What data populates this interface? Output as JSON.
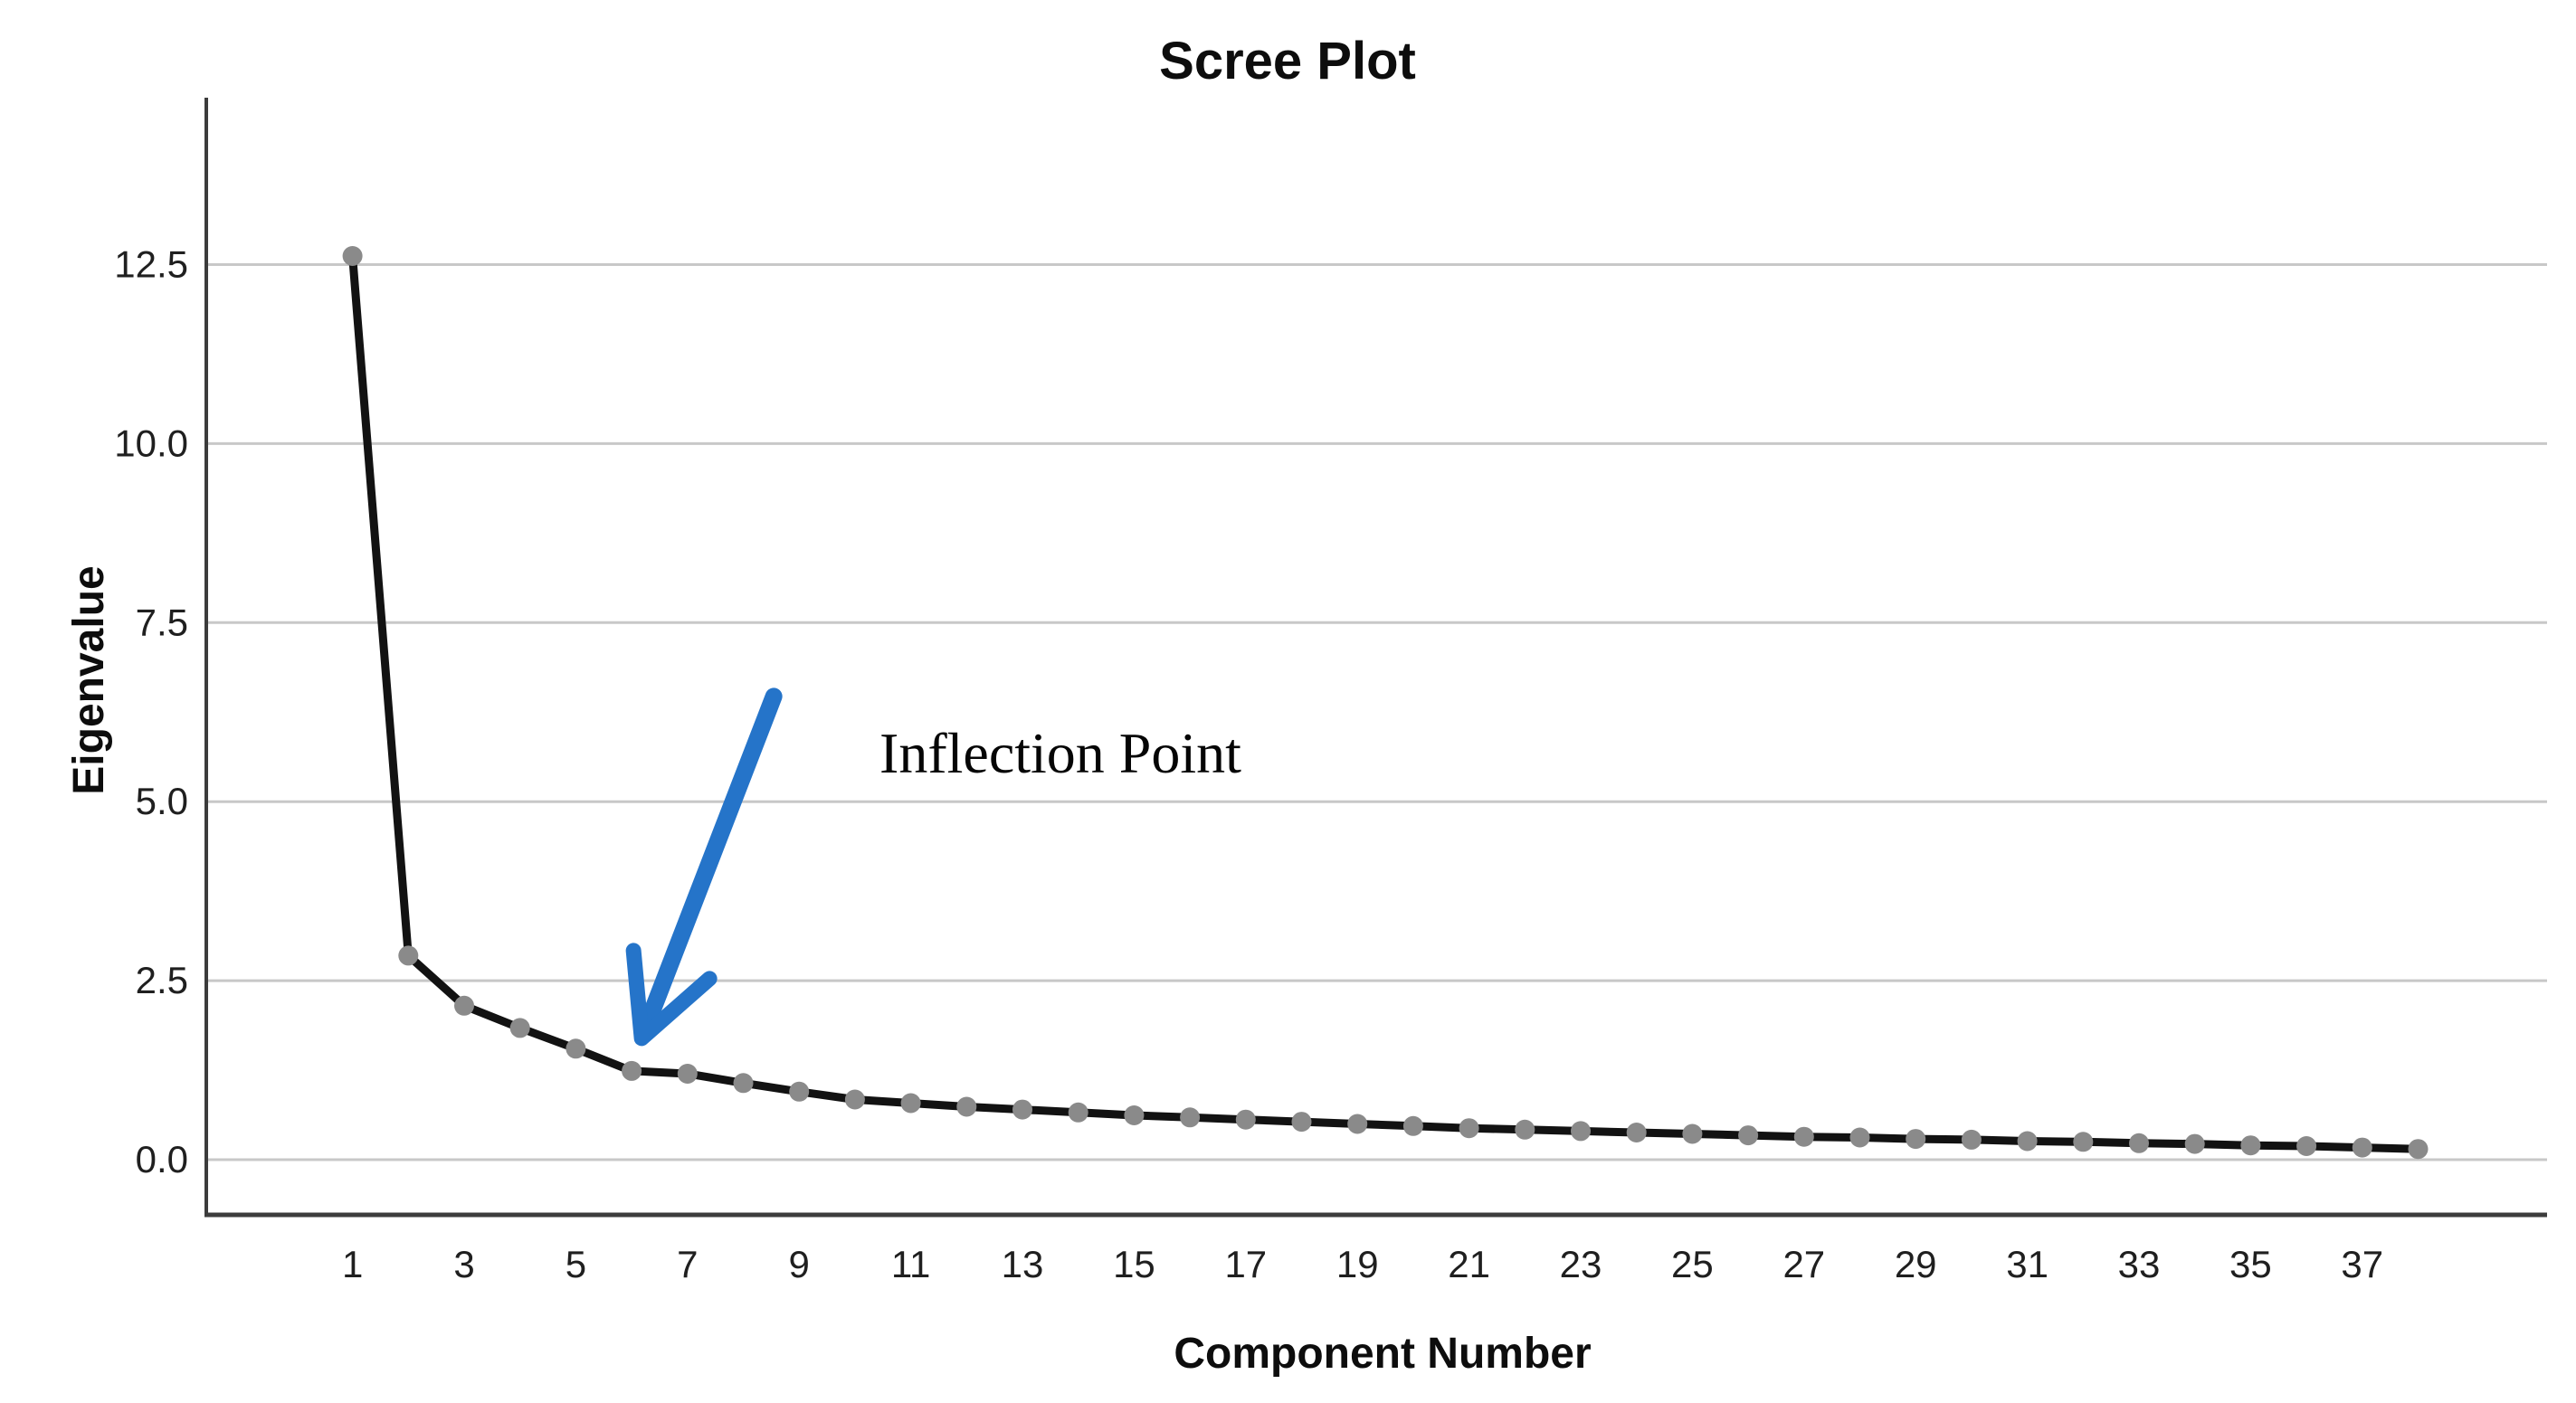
{
  "chart_data": {
    "type": "line",
    "title": "Scree Plot",
    "xlabel": "Component Number",
    "ylabel": "Eigenvalue",
    "x": [
      1,
      2,
      3,
      4,
      5,
      6,
      7,
      8,
      9,
      10,
      11,
      12,
      13,
      14,
      15,
      16,
      17,
      18,
      19,
      20,
      21,
      22,
      23,
      24,
      25,
      26,
      27,
      28,
      29,
      30,
      31,
      32,
      33,
      34,
      35,
      36,
      37,
      38
    ],
    "values": [
      12.62,
      2.85,
      2.15,
      1.84,
      1.55,
      1.24,
      1.2,
      1.07,
      0.95,
      0.84,
      0.79,
      0.74,
      0.7,
      0.66,
      0.62,
      0.59,
      0.56,
      0.53,
      0.5,
      0.47,
      0.44,
      0.42,
      0.4,
      0.38,
      0.36,
      0.34,
      0.32,
      0.31,
      0.29,
      0.28,
      0.26,
      0.25,
      0.23,
      0.22,
      0.2,
      0.19,
      0.17,
      0.15
    ],
    "x_tick_labels": [
      "1",
      "3",
      "5",
      "7",
      "9",
      "11",
      "13",
      "15",
      "17",
      "19",
      "21",
      "23",
      "25",
      "27",
      "29",
      "31",
      "33",
      "35",
      "37"
    ],
    "y_tick_labels": [
      "0.0",
      "2.5",
      "5.0",
      "7.5",
      "10.0",
      "12.5"
    ],
    "xlim": [
      -1.62,
      40.31
    ],
    "ylim": [
      -0.77,
      14.83
    ],
    "grid": "horizontal-only",
    "legend": "none",
    "annotation": {
      "text": "Inflection Point",
      "points_at_component": 6,
      "arrow_color": "#2574c9"
    },
    "colors": {
      "line": "#121212",
      "marker": "#8a8a8a",
      "gridline": "#c8c8c8",
      "axis": "#3c3c3c",
      "background": "#ffffff"
    }
  }
}
